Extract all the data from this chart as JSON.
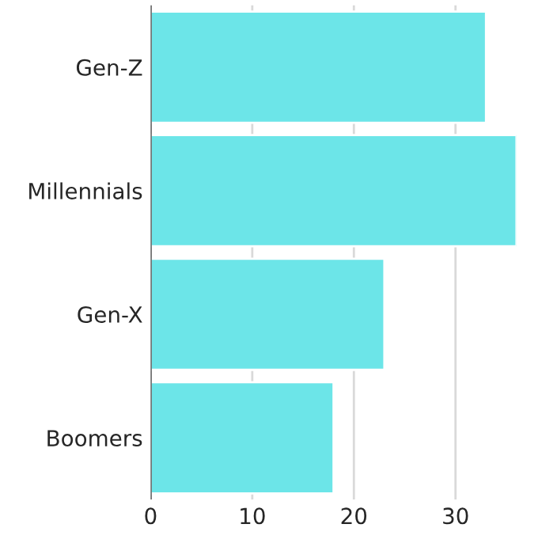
{
  "chart_data": {
    "type": "bar",
    "orientation": "horizontal",
    "categories": [
      "Gen-Z",
      "Millennials",
      "Gen-X",
      "Boomers"
    ],
    "values": [
      33,
      36,
      23,
      18
    ],
    "color": "#6ce5e8",
    "xlim": [
      0,
      36
    ],
    "xticks": [
      0,
      10,
      20,
      30
    ],
    "grid": "x"
  }
}
